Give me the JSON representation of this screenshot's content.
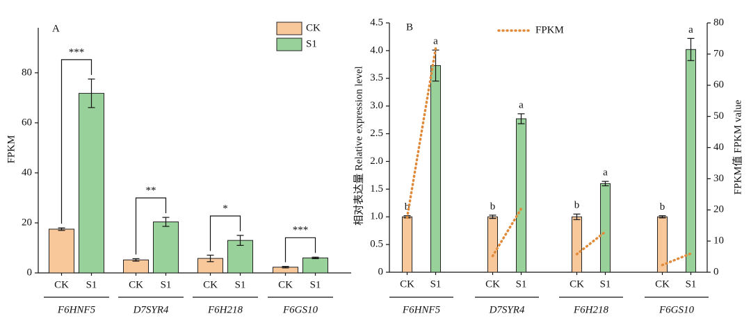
{
  "chart_data": [
    {
      "type": "bar",
      "panel": "A",
      "ylabel": "FPKM",
      "groups": [
        "F6HNF5",
        "D7SYR4",
        "F6H218",
        "F6GS10"
      ],
      "series": [
        {
          "name": "CK",
          "color": "#f8c89a",
          "values": [
            17.5,
            5.2,
            5.8,
            2.3
          ],
          "errors": [
            0.5,
            0.5,
            1.3,
            0.3
          ]
        },
        {
          "name": "S1",
          "color": "#98d19a",
          "values": [
            71.8,
            20.4,
            13.0,
            6.0
          ],
          "errors": [
            5.7,
            1.8,
            2.0,
            0.3
          ]
        }
      ],
      "significance": [
        "***",
        "**",
        "*",
        "***"
      ],
      "ylim": [
        0,
        98
      ],
      "yticks": [
        0,
        20,
        40,
        60,
        80
      ],
      "legend": "upper right"
    },
    {
      "type": "bar",
      "panel": "B",
      "ylabel": "相对表达量 Relative expression level",
      "y2label": "FPKM值 FPKM value",
      "groups": [
        "F6HNF5",
        "D7SYR4",
        "F6H218",
        "F6GS10"
      ],
      "series": [
        {
          "name": "CK",
          "color": "#f8c89a",
          "values": [
            1.0,
            1.0,
            1.0,
            1.0
          ],
          "errors": [
            0.02,
            0.03,
            0.05,
            0.02
          ],
          "letters": [
            "b",
            "b",
            "b",
            "b"
          ]
        },
        {
          "name": "S1",
          "color": "#98d19a",
          "values": [
            3.73,
            2.77,
            1.6,
            4.02
          ],
          "errors": [
            0.28,
            0.09,
            0.04,
            0.2
          ],
          "letters": [
            "a",
            "a",
            "a",
            "a"
          ]
        }
      ],
      "line": {
        "name": "FPKM",
        "color": "#e08a3c",
        "axis": "y2",
        "values": [
          [
            17.5,
            71.8
          ],
          [
            5.2,
            20.4
          ],
          [
            5.8,
            13.0
          ],
          [
            2.3,
            6.0
          ]
        ]
      },
      "ylim": [
        0,
        4.5
      ],
      "yticks": [
        0,
        0.5,
        {
          "value": 1,
          "label": "1.0"
        },
        1.5,
        {
          "value": 2,
          "label": "2.0"
        },
        2.5,
        {
          "value": 3,
          "label": "3.0"
        },
        3.5,
        {
          "value": 4,
          "label": "4.0"
        },
        4.5
      ],
      "y2lim": [
        0,
        80
      ],
      "y2ticks": [
        0,
        10,
        20,
        30,
        40,
        50,
        60,
        70,
        80
      ],
      "legend": "upper center"
    }
  ]
}
